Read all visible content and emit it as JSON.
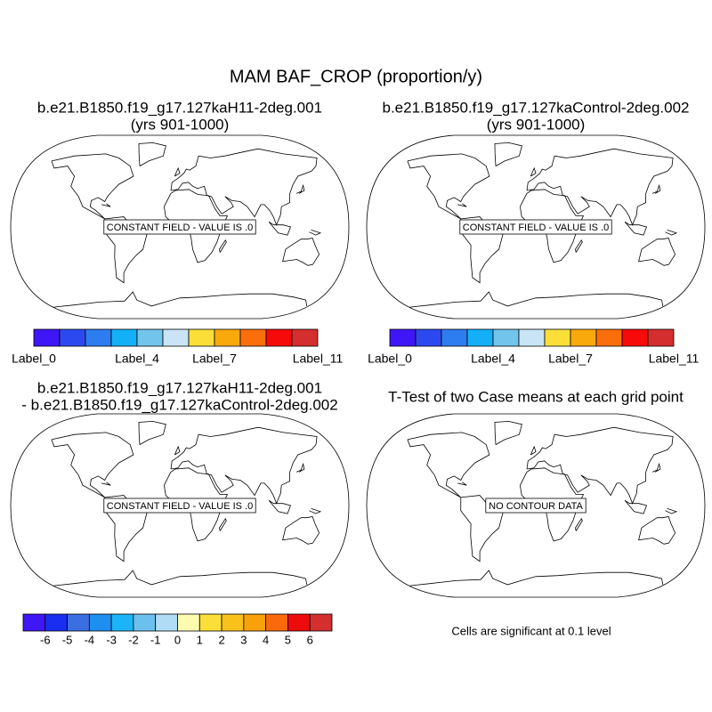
{
  "title": "MAM BAF_CROP (proportion/y)",
  "panels": [
    {
      "title": [
        "b.e21.B1850.f19_g17.127kaH11-2deg.001",
        "(yrs 901-1000)"
      ],
      "map_label": "CONSTANT FIELD - VALUE IS .0"
    },
    {
      "title": [
        "b.e21.B1850.f19_g17.127kaControl-2deg.002",
        "(yrs 901-1000)"
      ],
      "map_label": "CONSTANT FIELD - VALUE IS .0"
    },
    {
      "title": [
        "b.e21.B1850.f19_g17.127kaH11-2deg.001",
        "- b.e21.B1850.f19_g17.127kaControl-2deg.002"
      ],
      "map_label": "CONSTANT FIELD - VALUE IS .0"
    },
    {
      "title": [
        "T-Test of two Case means at each grid point"
      ],
      "map_label": "NO CONTOUR DATA"
    }
  ],
  "colorbars": [
    {
      "colors": [
        "#3f16f5",
        "#2c49f0",
        "#2e7df0",
        "#14b0f7",
        "#73c4ec",
        "#c8e4f5",
        "#fbdf38",
        "#f9a90c",
        "#fa6e0c",
        "#f60a0a",
        "#d42e2e"
      ],
      "labels": [
        "Label_0",
        null,
        null,
        null,
        "Label_4",
        null,
        null,
        "Label_7",
        null,
        null,
        null,
        "Label_11"
      ]
    },
    {
      "colors": [
        "#3f16f5",
        "#2c49f0",
        "#2e7df0",
        "#14b0f7",
        "#73c4ec",
        "#c8e4f5",
        "#fbdf38",
        "#f9a90c",
        "#fa6e0c",
        "#f60a0a",
        "#d42e2e"
      ],
      "labels": [
        "Label_0",
        null,
        null,
        null,
        "Label_4",
        null,
        null,
        "Label_7",
        null,
        null,
        null,
        "Label_11"
      ]
    },
    {
      "colors": [
        "#3f16f5",
        "#1a2ef2",
        "#3a6ee2",
        "#1c8ff0",
        "#1cb4f8",
        "#6cc0ed",
        "#b0dcf5",
        "#fdfbb0",
        "#fbdf38",
        "#f9c21a",
        "#f9a10a",
        "#fa690b",
        "#ee0b0b",
        "#d42e2e"
      ],
      "labels": [
        null,
        -6,
        -5,
        -4,
        -3,
        -2,
        -1,
        0,
        1,
        2,
        3,
        4,
        5,
        6,
        null
      ]
    }
  ],
  "note": "Cells are significant at 0.1 level"
}
